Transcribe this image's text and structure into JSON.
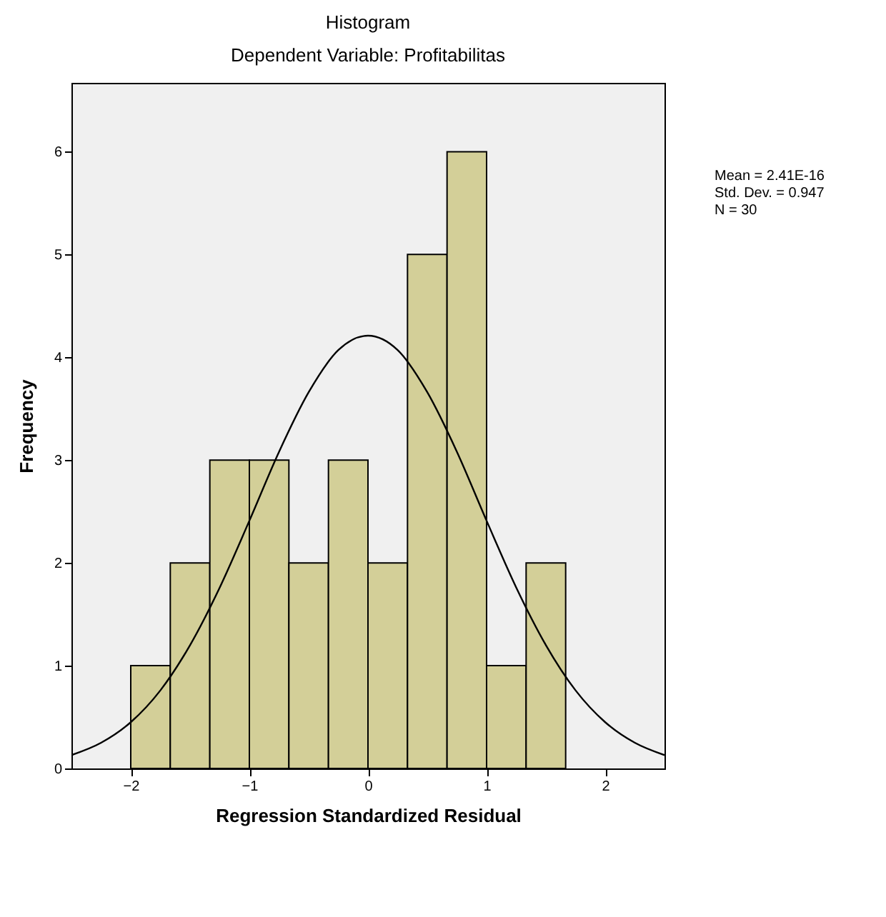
{
  "chart_data": {
    "type": "histogram",
    "title": "Histogram",
    "subtitle": "Dependent Variable: Profitabilitas",
    "xlabel": "Regression Standardized Residual",
    "ylabel": "Frequency",
    "bins": [
      -2,
      -1.6667,
      -1.3333,
      -1,
      -0.6667,
      -0.3333,
      0,
      0.3333,
      0.6667,
      1,
      1.3333,
      1.6667
    ],
    "values": [
      1,
      2,
      3,
      3,
      2,
      3,
      2,
      5,
      6,
      1,
      2
    ],
    "color": "#d3cf98",
    "series": [
      {
        "type": "line",
        "color": "#000000",
        "x": [
          -2.5,
          -2.25,
          -2,
          -1.75,
          -1.5,
          -1.25,
          -1,
          -0.75,
          -0.5,
          -0.25,
          0,
          0.25,
          0.5,
          0.75,
          1,
          1.25,
          1.5,
          1.75,
          2,
          2.25,
          2.5
        ],
        "values": [
          0.13,
          0.25,
          0.45,
          0.76,
          1.2,
          1.76,
          2.41,
          3.08,
          3.66,
          4.07,
          4.21,
          4.07,
          3.66,
          3.08,
          2.41,
          1.76,
          1.2,
          0.76,
          0.45,
          0.25,
          0.13
        ]
      }
    ],
    "xlim": [
      -2.5,
      2.5
    ],
    "xticks": [
      -2,
      -1,
      0,
      1,
      2
    ],
    "ylim": [
      0,
      6.67
    ],
    "yticks": [
      0,
      1,
      2,
      3,
      4,
      5,
      6
    ],
    "grid": false,
    "annotations": [
      "Mean = 2.41E-16",
      "Std. Dev. = 0.947",
      "N = 30"
    ]
  }
}
